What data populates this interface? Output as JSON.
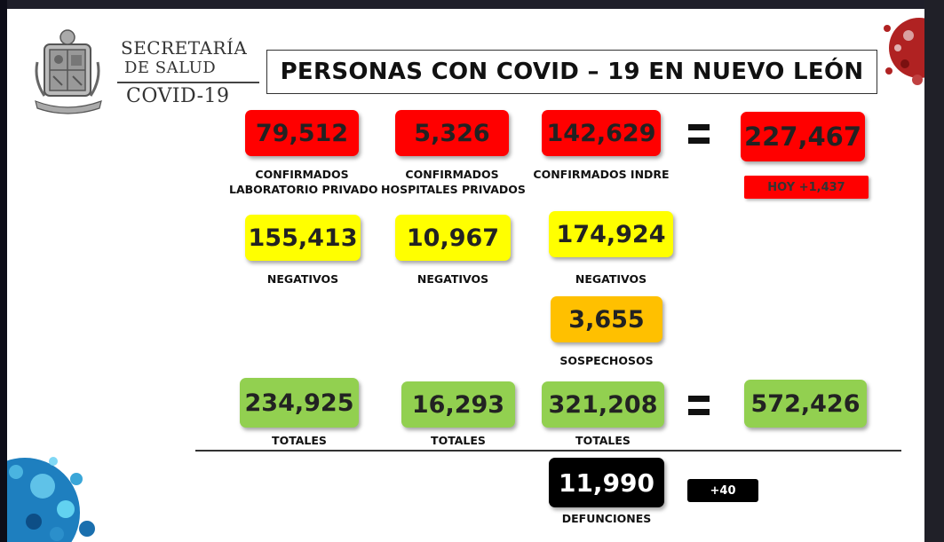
{
  "header": {
    "org_line1": "SECRETARÍA",
    "org_line2": "DE SALUD",
    "org_line3": "COVID-19",
    "title": "PERSONAS CON COVID – 19 EN NUEVO LEÓN"
  },
  "confirmed": {
    "lab_privado": "79,512",
    "hosp_privados": "5,326",
    "indre": "142,629",
    "total": "227,467",
    "today": "HOY +1,437",
    "label_lab_1": "CONFIRMADOS",
    "label_lab_2": "LABORATORIO PRIVADO",
    "label_hosp_1": "CONFIRMADOS",
    "label_hosp_2": "HOSPITALES PRIVADOS",
    "label_indre": "CONFIRMADOS INDRE"
  },
  "negatives": {
    "lab": "155,413",
    "hosp": "10,967",
    "indre": "174,924",
    "label": "NEGATIVOS"
  },
  "suspects": {
    "value": "3,655",
    "label": "SOSPECHOSOS"
  },
  "totals": {
    "lab": "234,925",
    "hosp": "16,293",
    "indre": "321,208",
    "grand": "572,426",
    "label": "TOTALES"
  },
  "deaths": {
    "value": "11,990",
    "label": "DEFUNCIONES",
    "increase": "+40"
  },
  "colors": {
    "confirmed": "#ff0000",
    "negative": "#ffff00",
    "suspect": "#ffc000",
    "total": "#92d050",
    "deaths": "#000000"
  },
  "icons": [
    "state-seal-icon",
    "virus-icon",
    "equals-icon"
  ]
}
